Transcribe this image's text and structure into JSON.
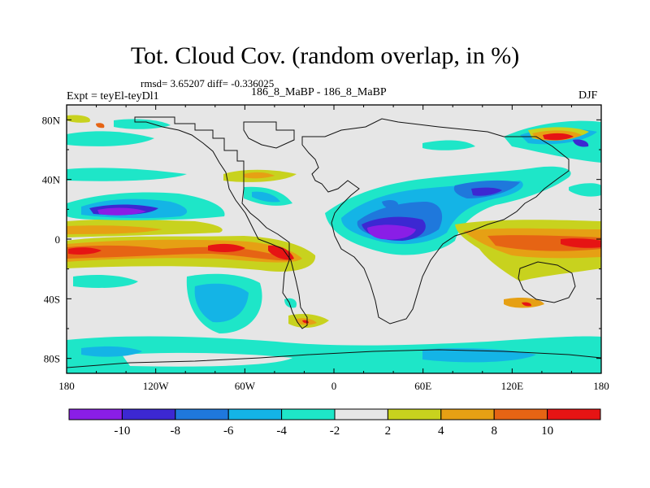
{
  "title": "Tot. Cloud Cov. (random overlap, in %)",
  "stats": "rmsd= 3.65207 diff= -0.336025",
  "experiment": "Expt = teyEl-teyDl1",
  "center_label": "186_8_MaBP - 186_8_MaBP",
  "season": "DJF",
  "map": {
    "lon_range": [
      -180,
      180
    ],
    "lat_range": [
      -90,
      90
    ],
    "x_ticks": [
      {
        "lon": -180,
        "label": "180"
      },
      {
        "lon": -120,
        "label": "120W"
      },
      {
        "lon": -60,
        "label": "60W"
      },
      {
        "lon": 0,
        "label": "0"
      },
      {
        "lon": 60,
        "label": "60E"
      },
      {
        "lon": 120,
        "label": "120E"
      },
      {
        "lon": 180,
        "label": "180"
      }
    ],
    "y_ticks": [
      {
        "lat": 80,
        "label": "80N"
      },
      {
        "lat": 40,
        "label": "40N"
      },
      {
        "lat": 0,
        "label": "0"
      },
      {
        "lat": -40,
        "label": "40S"
      },
      {
        "lat": -80,
        "label": "80S"
      }
    ],
    "background_color": "#e6e6e6"
  },
  "colorbar": {
    "colors": [
      "#8a1ee6",
      "#3c28d2",
      "#1f78dc",
      "#14b4e6",
      "#1ee6c8",
      "#e6e6e6",
      "#c8d21e",
      "#e6a014",
      "#e66414",
      "#e61414"
    ],
    "labels": [
      "-10",
      "-8",
      "-6",
      "-4",
      "-2",
      "2",
      "4",
      "8",
      "10"
    ]
  }
}
